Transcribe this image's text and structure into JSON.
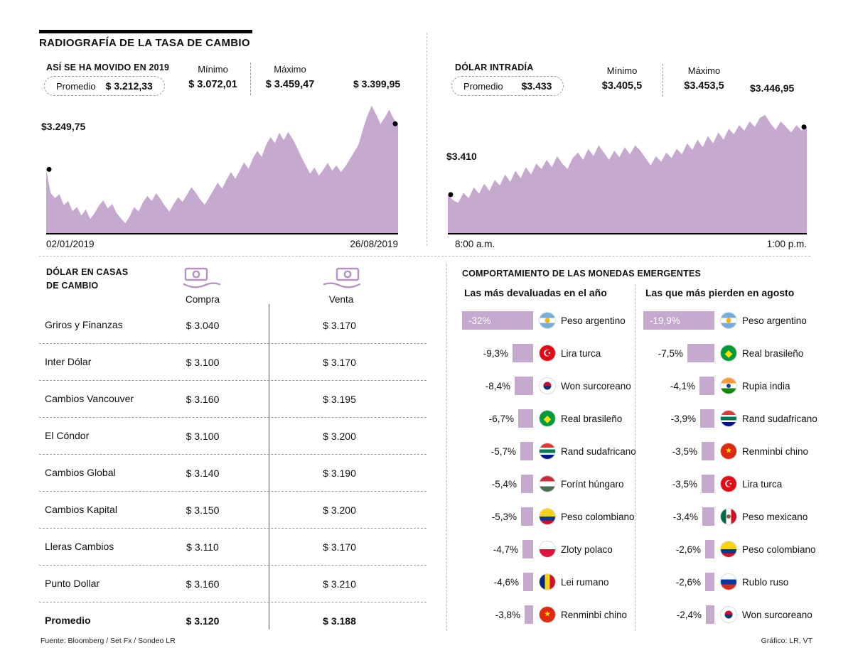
{
  "meta": {
    "title": "RADIOGRAFÍA DE LA TASA DE CAMBIO",
    "fuente": "Fuente: Bloomberg / Set Fx / Sondeo LR",
    "credit": "Gráfico: LR, VT"
  },
  "colors": {
    "accent": "#c6a9ce",
    "icon": "#b593c3",
    "dot": "#000000"
  },
  "chart_data": [
    {
      "id": "dolar-2019",
      "type": "area",
      "title": "ASÍ SE HA MOVIDO EN 2019",
      "stats": {
        "promedio_label": "Promedio",
        "promedio": "$ 3.212,33",
        "minimo_label": "Mínimo",
        "minimo": "$ 3.072,01",
        "maximo_label": "Máximo",
        "maximo": "$ 3.459,47"
      },
      "start_annotation": "$3.249,75",
      "end_annotation": "$ 3.399,95",
      "x_start_label": "02/01/2019",
      "x_end_label": "26/08/2019",
      "ylim": [
        3040,
        3480
      ],
      "values": [
        3249.75,
        3172,
        3155,
        3168,
        3132,
        3146,
        3112,
        3126,
        3098,
        3118,
        3086,
        3106,
        3131,
        3148,
        3121,
        3136,
        3106,
        3088,
        3072.01,
        3096,
        3126,
        3111,
        3141,
        3162,
        3146,
        3171,
        3152,
        3129,
        3111,
        3136,
        3158,
        3143,
        3166,
        3191,
        3173,
        3151,
        3133,
        3156,
        3181,
        3206,
        3186,
        3216,
        3241,
        3219,
        3246,
        3273,
        3251,
        3286,
        3311,
        3291,
        3331,
        3356,
        3336,
        3371,
        3346,
        3373,
        3351,
        3323,
        3291,
        3263,
        3236,
        3256,
        3229,
        3249,
        3271,
        3246,
        3263,
        3241,
        3259,
        3283,
        3306,
        3331,
        3381,
        3426,
        3459.47,
        3431,
        3399,
        3421,
        3446,
        3416,
        3399.95
      ]
    },
    {
      "id": "dolar-intradia",
      "type": "area",
      "title": "DÓLAR INTRADÍA",
      "stats": {
        "promedio_label": "Promedio",
        "promedio": "$3.433",
        "minimo_label": "Mínimo",
        "minimo": "$3.405,5",
        "maximo_label": "Máximo",
        "maximo": "$3.453,5"
      },
      "start_annotation": "$3.410",
      "end_annotation": "$3.446,95",
      "x_start_label": "8:00 a.m.",
      "x_end_label": "1:00 p.m.",
      "ylim": [
        3389,
        3462
      ],
      "values": [
        3410,
        3407,
        3405.5,
        3411,
        3408,
        3414,
        3410.5,
        3416,
        3412,
        3418,
        3415,
        3421,
        3417,
        3423,
        3419,
        3425,
        3421,
        3427,
        3424,
        3429,
        3425,
        3431,
        3427,
        3424,
        3430,
        3433,
        3429,
        3435,
        3431,
        3437,
        3433,
        3429,
        3434,
        3430.5,
        3436,
        3432,
        3437,
        3434,
        3430,
        3426,
        3431,
        3428,
        3433,
        3430,
        3435,
        3432,
        3438,
        3434.5,
        3440,
        3436,
        3442,
        3438,
        3444,
        3440,
        3446,
        3443,
        3448,
        3445,
        3450,
        3447,
        3452,
        3453.5,
        3449,
        3445.5,
        3450,
        3447,
        3444,
        3448,
        3445,
        3446.95
      ]
    }
  ],
  "exchange_table": {
    "title_line1": "DÓLAR EN CASAS",
    "title_line2": "DE CAMBIO",
    "col_compra": "Compra",
    "col_venta": "Venta",
    "rows": [
      {
        "name": "Griros y Finanzas",
        "compra": "$ 3.040",
        "venta": "$ 3.170",
        "bold": false
      },
      {
        "name": "Inter Dólar",
        "compra": "$ 3.100",
        "venta": "$ 3.170",
        "bold": false
      },
      {
        "name": "Cambios Vancouver",
        "compra": "$ 3.160",
        "venta": "$ 3.195",
        "bold": false
      },
      {
        "name": "El Cóndor",
        "compra": "$ 3.100",
        "venta": "$ 3.200",
        "bold": false
      },
      {
        "name": "Cambios Global",
        "compra": "$ 3.140",
        "venta": "$ 3.190",
        "bold": false
      },
      {
        "name": "Cambios Kapital",
        "compra": "$ 3.150",
        "venta": "$ 3.200",
        "bold": false
      },
      {
        "name": "Lleras Cambios",
        "compra": "$ 3.110",
        "venta": "$ 3.170",
        "bold": false
      },
      {
        "name": "Punto Dollar",
        "compra": "$ 3.160",
        "venta": "$ 3.210",
        "bold": false
      },
      {
        "name": "Promedio",
        "compra": "$ 3.120",
        "venta": "$ 3.188",
        "bold": true
      }
    ]
  },
  "emerging": {
    "title": "COMPORTAMIENTO DE LAS MONEDAS EMERGENTES",
    "lists": [
      {
        "subtitle": "Las más devaluadas en el año",
        "items": [
          {
            "pct": 32,
            "label": "-32%",
            "currency": "Peso argentino",
            "flag": "argentina"
          },
          {
            "pct": 9.3,
            "label": "-9,3%",
            "currency": "Lira turca",
            "flag": "turkey"
          },
          {
            "pct": 8.4,
            "label": "-8,4%",
            "currency": "Won surcoreano",
            "flag": "south-korea"
          },
          {
            "pct": 6.7,
            "label": "-6,7%",
            "currency": "Real brasileño",
            "flag": "brazil"
          },
          {
            "pct": 5.7,
            "label": "-5,7%",
            "currency": "Rand sudafricano",
            "flag": "south-africa"
          },
          {
            "pct": 5.4,
            "label": "-5,4%",
            "currency": "Forínt húngaro",
            "flag": "hungary"
          },
          {
            "pct": 5.3,
            "label": "-5,3%",
            "currency": "Peso colombiano",
            "flag": "colombia"
          },
          {
            "pct": 4.7,
            "label": "-4,7%",
            "currency": "Zloty polaco",
            "flag": "poland"
          },
          {
            "pct": 4.6,
            "label": "-4,6%",
            "currency": "Lei rumano",
            "flag": "romania"
          },
          {
            "pct": 3.8,
            "label": "-3,8%",
            "currency": "Renminbi chino",
            "flag": "china"
          }
        ]
      },
      {
        "subtitle": "Las que más pierden en agosto",
        "items": [
          {
            "pct": 19.9,
            "label": "-19,9%",
            "currency": "Peso argentino",
            "flag": "argentina"
          },
          {
            "pct": 7.5,
            "label": "-7,5%",
            "currency": "Real brasileño",
            "flag": "brazil"
          },
          {
            "pct": 4.1,
            "label": "-4,1%",
            "currency": "Rupia india",
            "flag": "india"
          },
          {
            "pct": 3.9,
            "label": "-3,9%",
            "currency": "Rand sudafricano",
            "flag": "south-africa"
          },
          {
            "pct": 3.5,
            "label": "-3,5%",
            "currency": "Renminbi chino",
            "flag": "china"
          },
          {
            "pct": 3.5,
            "label": "-3,5%",
            "currency": "Lira turca",
            "flag": "turkey"
          },
          {
            "pct": 3.4,
            "label": "-3,4%",
            "currency": "Peso mexicano",
            "flag": "mexico"
          },
          {
            "pct": 2.6,
            "label": "-2,6%",
            "currency": "Peso colombiano",
            "flag": "colombia"
          },
          {
            "pct": 2.6,
            "label": "-2,6%",
            "currency": "Rublo ruso",
            "flag": "russia"
          },
          {
            "pct": 2.4,
            "label": "-2,4%",
            "currency": "Won surcoreano",
            "flag": "south-korea"
          }
        ]
      }
    ]
  },
  "flags": {
    "argentina": {
      "bg": "linear-gradient(180deg,#74ACDF 0 34%,#ffffff 34% 66%,#74ACDF 66%)",
      "emblem": {
        "shape": "dot",
        "bg": "#F6B40E",
        "size": 7
      }
    },
    "turkey": {
      "bg": "#E30A17",
      "emblem": {
        "char": "☪",
        "color": "#ffffff",
        "size": 13
      }
    },
    "south-korea": {
      "bg": "#ffffff",
      "emblem": {
        "shape": "dot",
        "bg": "linear-gradient(180deg,#C60C30 50%,#003478 50%)",
        "size": 11
      }
    },
    "brazil": {
      "bg": "#009C3B",
      "emblem": {
        "char": "◆",
        "color": "#FFDF00",
        "size": 14
      }
    },
    "south-africa": {
      "bg": "linear-gradient(180deg,#DE3831 0 28%,#ffffff 28% 38%,#007A4D 38% 62%,#ffffff 62% 72%,#001489 72%)"
    },
    "hungary": {
      "bg": "linear-gradient(180deg,#CE2939 0 34%,#ffffff 34% 66%,#477050 66%)"
    },
    "colombia": {
      "bg": "linear-gradient(180deg,#FCD116 0 50%,#003893 50% 75%,#CE1126 75%)"
    },
    "poland": {
      "bg": "linear-gradient(180deg,#ffffff 0 50%,#DC143C 50%)"
    },
    "romania": {
      "bg": "linear-gradient(90deg,#002B7F 0 34%,#FCD116 34% 66%,#CE1126 66%)"
    },
    "china": {
      "bg": "#DE2910",
      "emblem": {
        "char": "★",
        "color": "#FFDE00",
        "size": 11
      }
    },
    "india": {
      "bg": "linear-gradient(180deg,#FF9933 0 34%,#ffffff 34% 66%,#138808 66%)",
      "emblem": {
        "shape": "dot",
        "bg": "#1A3F9C",
        "size": 6
      }
    },
    "mexico": {
      "bg": "linear-gradient(90deg,#006847 0 34%,#ffffff 34% 66%,#CE1126 66%)",
      "emblem": {
        "shape": "dot",
        "bg": "#8C6239",
        "size": 6
      }
    },
    "russia": {
      "bg": "linear-gradient(180deg,#ffffff 0 34%,#0039A6 34% 66%,#D52B1E 66%)"
    }
  }
}
